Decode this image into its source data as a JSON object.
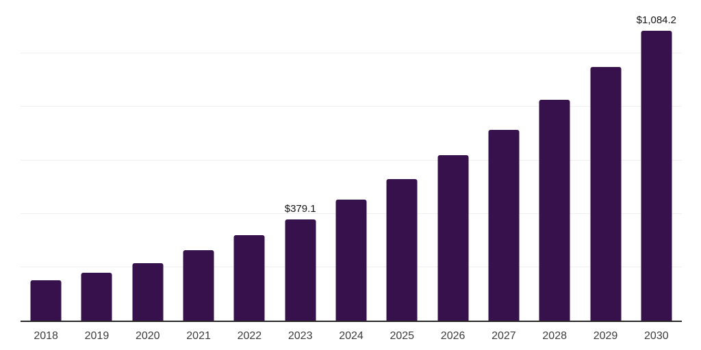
{
  "chart_data": {
    "type": "bar",
    "title": "",
    "xlabel": "",
    "ylabel": "",
    "categories": [
      "2018",
      "2019",
      "2020",
      "2021",
      "2022",
      "2023",
      "2024",
      "2025",
      "2026",
      "2027",
      "2028",
      "2029",
      "2030"
    ],
    "values": [
      151.9,
      178.4,
      216.2,
      262.5,
      319.2,
      379.1,
      453.0,
      530.2,
      620.3,
      713.0,
      826.2,
      949.8,
      1084.2
    ],
    "data_labels": {
      "2023": "$379.1",
      "2030": "$1,084.2"
    },
    "ylim": [
      0,
      1200
    ],
    "gridline_step": 200,
    "grid": true,
    "legend": false,
    "colors": {
      "bar": "#36114b",
      "axis_line": "#262626",
      "gridline": "#efefef",
      "x_tick_label": "#3b3b3b",
      "value_label": "#141414"
    }
  }
}
